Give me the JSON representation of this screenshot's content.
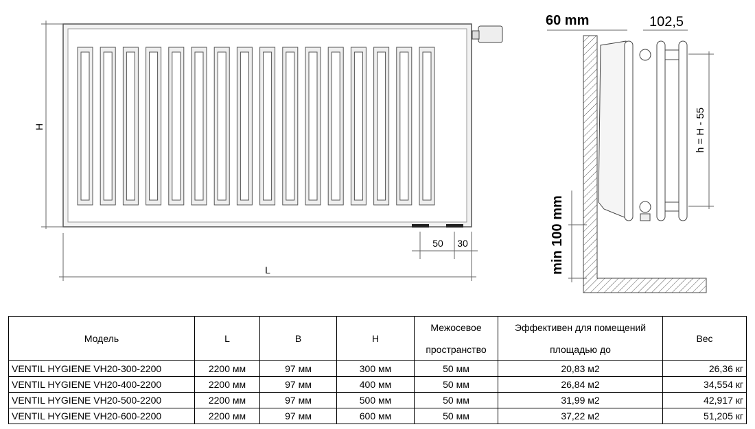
{
  "drawing": {
    "front": {
      "height_label": "H",
      "length_label": "L",
      "dim_50": "50",
      "dim_30": "30"
    },
    "side": {
      "depth_label": "60 mm",
      "pitch_label": "102,5",
      "h_label": "h = H - 55",
      "min_label": "min 100 mm"
    }
  },
  "table": {
    "headers": [
      "Модель",
      "L",
      "B",
      "H",
      "Межосевое пространство",
      "Эффективен для помещений площадью до",
      "Вес"
    ],
    "rows": [
      [
        "VENTIL HYGIENE VH20-300-2200",
        "2200 мм",
        "97 мм",
        "300 мм",
        "50 мм",
        "20,83 м2",
        "26,36 кг"
      ],
      [
        "VENTIL HYGIENE VH20-400-2200",
        "2200 мм",
        "97 мм",
        "400 мм",
        "50 мм",
        "26,84 м2",
        "34,554 кг"
      ],
      [
        "VENTIL HYGIENE VH20-500-2200",
        "2200 мм",
        "97 мм",
        "500 мм",
        "50 мм",
        "31,99 м2",
        "42,917 кг"
      ],
      [
        "VENTIL HYGIENE VH20-600-2200",
        "2200 мм",
        "97 мм",
        "600 мм",
        "50 мм",
        "37,22 м2",
        "51,205 кг"
      ]
    ]
  }
}
